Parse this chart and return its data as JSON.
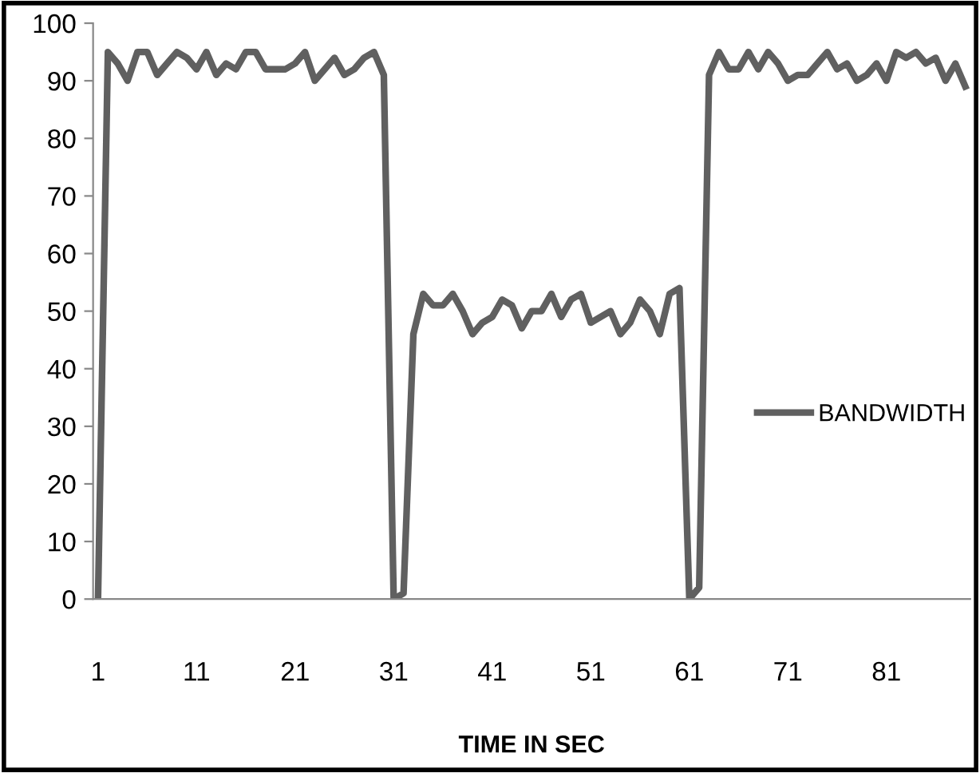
{
  "chart_data": {
    "type": "line",
    "xlabel": "TIME IN SEC",
    "categories": [
      "1",
      null,
      null,
      null,
      null,
      null,
      null,
      null,
      null,
      null,
      "11",
      null,
      null,
      null,
      null,
      null,
      null,
      null,
      null,
      null,
      "21",
      null,
      null,
      null,
      null,
      null,
      null,
      null,
      null,
      null,
      "31",
      null,
      null,
      null,
      null,
      null,
      null,
      null,
      null,
      null,
      "41",
      null,
      null,
      null,
      null,
      null,
      null,
      null,
      null,
      null,
      "51",
      null,
      null,
      null,
      null,
      null,
      null,
      null,
      null,
      null,
      "61",
      null,
      null,
      null,
      null,
      null,
      null,
      null,
      null,
      null,
      "71",
      null,
      null,
      null,
      null,
      null,
      null,
      null,
      null,
      null,
      "81",
      null,
      null,
      null,
      null,
      null,
      null,
      null,
      null
    ],
    "series": [
      {
        "name": "BANDWIDTH",
        "color": "#606060",
        "values": [
          0,
          95,
          93,
          90,
          95,
          95,
          91,
          93,
          95,
          94,
          92,
          95,
          91,
          93,
          92,
          95,
          95,
          92,
          92,
          92,
          93,
          95,
          90,
          92,
          94,
          91,
          92,
          94,
          95,
          91,
          0,
          1,
          46,
          53,
          51,
          51,
          53,
          50,
          46,
          48,
          49,
          52,
          51,
          47,
          50,
          50,
          53,
          49,
          52,
          53,
          48,
          49,
          50,
          46,
          48,
          52,
          50,
          46,
          53,
          54,
          0,
          2,
          91,
          95,
          92,
          92,
          95,
          92,
          95,
          93,
          90,
          91,
          91,
          93,
          95,
          92,
          93,
          90,
          91,
          93,
          90,
          95,
          94,
          95,
          93,
          94,
          90,
          93,
          89
        ]
      }
    ],
    "ylim": [
      0,
      100
    ],
    "yticks": [
      0,
      10,
      20,
      30,
      40,
      50,
      60,
      70,
      80,
      90,
      100
    ],
    "grid": false,
    "legend": "right",
    "marker": "none",
    "line_style": "solid"
  }
}
